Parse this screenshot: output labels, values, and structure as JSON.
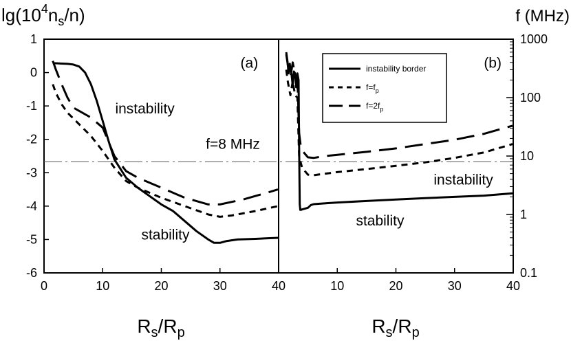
{
  "chart_data": [
    {
      "panel": "(a)",
      "type": "line",
      "title": "",
      "xlabel": "Rs/Rp",
      "ylabel": "lg(10^4 n_s/n)",
      "ylabel_parts": {
        "pre": "lg(10",
        "sup": "4",
        "mid": "n",
        "sub": "s",
        "post": "/n)"
      },
      "xlabel_parts": {
        "a": "R",
        "as": "s",
        "slash": "/",
        "b": "R",
        "bs": "p"
      },
      "xlim": [
        0,
        40
      ],
      "ylim": [
        -6,
        1
      ],
      "xticks": [
        0,
        10,
        20,
        30,
        40
      ],
      "yticks": [
        1,
        0,
        -1,
        -2,
        -3,
        -4,
        -5,
        -6
      ],
      "grid": false,
      "series": [
        {
          "name": "instability border",
          "style": "solid",
          "x": [
            1.5,
            2,
            3,
            4,
            5,
            6,
            7,
            8,
            9,
            10,
            11,
            12,
            14,
            16,
            18,
            20,
            22,
            24,
            26,
            28,
            29,
            30,
            31,
            33,
            36,
            40
          ],
          "y": [
            0.28,
            0.28,
            0.27,
            0.26,
            0.24,
            0.18,
            0.0,
            -0.35,
            -0.85,
            -1.45,
            -2.05,
            -2.6,
            -3.15,
            -3.45,
            -3.7,
            -3.95,
            -4.15,
            -4.45,
            -4.75,
            -5.0,
            -5.1,
            -5.1,
            -5.05,
            -5.0,
            -4.98,
            -4.95
          ]
        },
        {
          "name": "f=f_p",
          "style": "dashed",
          "x": [
            1.5,
            2,
            3,
            4,
            6,
            8,
            10,
            12,
            14,
            16,
            20,
            24,
            28,
            30,
            32,
            36,
            40
          ],
          "y": [
            -0.35,
            -0.6,
            -0.95,
            -1.2,
            -1.55,
            -1.9,
            -2.35,
            -2.85,
            -3.25,
            -3.45,
            -3.75,
            -4.0,
            -4.25,
            -4.32,
            -4.28,
            -4.15,
            -4.0
          ]
        },
        {
          "name": "f=2f_p",
          "style": "longdash",
          "x": [
            1.5,
            2,
            3,
            4,
            5,
            6,
            8,
            10,
            12,
            14,
            16,
            20,
            24,
            28,
            30,
            34,
            38,
            40
          ],
          "y": [
            0.35,
            0.1,
            -0.35,
            -0.75,
            -1.05,
            -1.15,
            -1.35,
            -1.65,
            -2.5,
            -2.95,
            -3.15,
            -3.45,
            -3.75,
            -3.95,
            -3.95,
            -3.8,
            -3.6,
            -3.5
          ]
        }
      ],
      "annotations": [
        {
          "text": "(a)",
          "x": 35,
          "y": 0.15
        },
        {
          "text": "instability",
          "x": 17.2,
          "y": -1.22
        },
        {
          "text": "stability",
          "x": 20.7,
          "y": -5.0
        },
        {
          "text": "f=8 MHz",
          "x": 32.2,
          "y": -2.28
        }
      ],
      "reference_line": {
        "label": "f=8 MHz",
        "y": -2.67,
        "style": "dash-dot"
      }
    },
    {
      "panel": "(b)",
      "type": "line",
      "title": "",
      "xlabel": "Rs/Rp",
      "ylabel": "f (MHz)",
      "yscale": "log",
      "xlim": [
        0,
        40
      ],
      "ylim": [
        0.1,
        1000
      ],
      "xticks": [
        0,
        10,
        20,
        30,
        40
      ],
      "yticks": [
        1000,
        100,
        10,
        1,
        0.1
      ],
      "ytick_labels": [
        "1000",
        "100",
        "10",
        "1",
        "0.1"
      ],
      "grid": false,
      "legend_position": "top-right",
      "legend": [
        "instability border",
        "f=f_p",
        "f=2f_p"
      ],
      "legend_parts": [
        {
          "text": "instability border"
        },
        {
          "text": "f=f",
          "sub": "p"
        },
        {
          "text": "f=2f",
          "sub": "p"
        }
      ],
      "series": [
        {
          "name": "instability border",
          "style": "solid",
          "x": [
            1.3,
            1.5,
            1.7,
            1.9,
            2.0,
            2.2,
            2.4,
            2.6,
            2.8,
            3.0,
            3.2,
            3.4,
            3.5,
            3.6,
            3.7,
            3.8,
            4,
            5,
            5.5,
            6,
            8,
            10,
            15,
            20,
            25,
            30,
            35,
            40
          ],
          "y": [
            600,
            420,
            260,
            380,
            300,
            250,
            160,
            280,
            260,
            150,
            260,
            200,
            15,
            1.5,
            1.2,
            1.2,
            1.22,
            1.3,
            1.45,
            1.5,
            1.55,
            1.6,
            1.7,
            1.8,
            1.9,
            2.0,
            2.1,
            2.3
          ]
        },
        {
          "name": "f=f_p",
          "style": "dashed",
          "x": [
            1.3,
            1.6,
            2.0,
            2.4,
            2.8,
            3.2,
            3.5,
            3.8,
            4,
            5,
            6,
            8,
            10,
            15,
            20,
            25,
            30,
            35,
            40
          ],
          "y": [
            300,
            180,
            110,
            190,
            110,
            100,
            10,
            7.5,
            6.3,
            4.8,
            4.7,
            5.0,
            5.3,
            6.0,
            6.8,
            7.8,
            9.3,
            11.5,
            16
          ]
        },
        {
          "name": "f=2f_p",
          "style": "longdash",
          "x": [
            1.3,
            1.6,
            2.0,
            2.4,
            2.8,
            3.2,
            3.5,
            3.8,
            4,
            5,
            6,
            8,
            10,
            15,
            20,
            25,
            30,
            35,
            40
          ],
          "y": [
            550,
            350,
            220,
            400,
            250,
            220,
            25,
            14,
            12.5,
            9.5,
            9.3,
            10,
            10.5,
            11.8,
            13.5,
            16,
            19,
            24,
            33
          ]
        }
      ],
      "annotations": [
        {
          "text": "(b)",
          "x": 36.5,
          "y": 0.15
        },
        {
          "text": "instability",
          "x": 31.5,
          "y": -3.35
        },
        {
          "text": "stability",
          "x": 17.3,
          "y": -4.58
        }
      ],
      "reference_line": {
        "label": "f=8 MHz",
        "f": 8,
        "style": "dash-dot"
      }
    }
  ]
}
